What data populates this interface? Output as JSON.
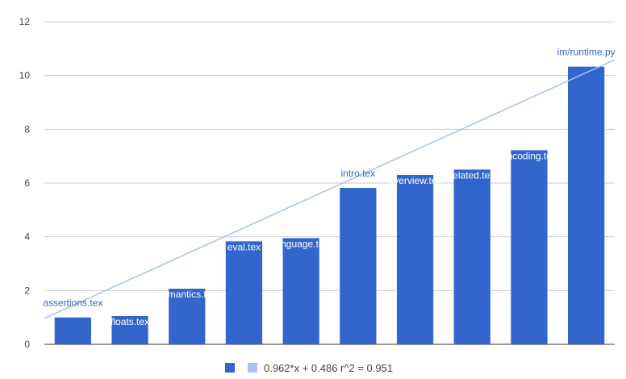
{
  "chart_data": {
    "type": "bar",
    "categories": [
      "assertions.tex",
      "floats.tex",
      "semantics.tex",
      "eval.tex",
      "language.tex",
      "intro.tex",
      "overview.tex",
      "related.tex",
      "encoding.tex",
      "im/runtime.py"
    ],
    "values": [
      1.0,
      1.05,
      2.07,
      3.83,
      3.95,
      5.82,
      6.3,
      6.5,
      7.22,
      10.33
    ],
    "ylim": [
      0,
      12
    ],
    "yticks": [
      0,
      2,
      4,
      6,
      8,
      10,
      12
    ],
    "grid": true,
    "trendline": {
      "slope": 0.962,
      "intercept": 0.486,
      "label": "0.962*x + 0.486 r^2 = 0.951"
    },
    "legend_position": "bottom",
    "colors": {
      "bar": "#3366cc",
      "trendline": "#a8c1ee",
      "label": "#3366cc",
      "inside_label": "#ffffff",
      "grid": "#cccccc",
      "axis": "#333333"
    }
  }
}
